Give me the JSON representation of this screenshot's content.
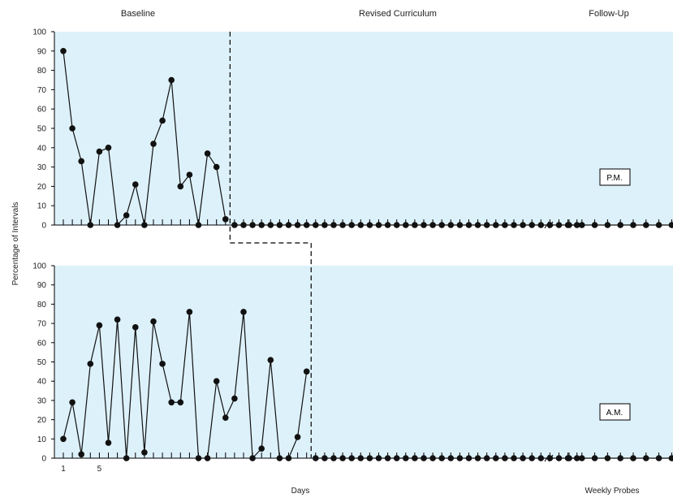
{
  "phases": [
    "Baseline",
    "Revised Curriculum",
    "Follow-Up"
  ],
  "y_axis_title": "Percentage of Intervals",
  "x_axis_title": "Days",
  "x_axis_title_followup": "Weekly Probes",
  "panel_labels": {
    "pm": "P.M.",
    "am": "A.M."
  },
  "colors": {
    "panel_fill": "#ddf1fa",
    "marker": "#111111",
    "line": "#111111"
  },
  "chart_data": [
    {
      "type": "line",
      "name": "P.M.",
      "ylim": [
        0,
        100
      ],
      "yticks": [
        0,
        10,
        20,
        30,
        40,
        50,
        60,
        70,
        80,
        90,
        100
      ],
      "phase_change_after_session": 19,
      "followup_break": true,
      "sessions": [
        1,
        2,
        3,
        4,
        5,
        6,
        7,
        8,
        9,
        10,
        11,
        12,
        13,
        14,
        15,
        16,
        17,
        18,
        19,
        20,
        21,
        22,
        23,
        24,
        25,
        26,
        27,
        28,
        29,
        30,
        31,
        32,
        33,
        34,
        35,
        36,
        37,
        38,
        39,
        40,
        41,
        42,
        43,
        44,
        45,
        46,
        47,
        48,
        49,
        50,
        51,
        52,
        53,
        54,
        55,
        56,
        57,
        58
      ],
      "values": [
        90,
        50,
        33,
        0,
        38,
        40,
        0,
        5,
        21,
        0,
        42,
        54,
        75,
        20,
        26,
        0,
        37,
        30,
        3,
        0,
        0,
        0,
        0,
        0,
        0,
        0,
        0,
        0,
        0,
        0,
        0,
        0,
        0,
        0,
        0,
        0,
        0,
        0,
        0,
        0,
        0,
        0,
        0,
        0,
        0,
        0,
        0,
        0,
        0,
        0,
        0,
        0,
        0,
        0,
        0,
        0,
        0,
        0
      ],
      "followup_values": [
        0,
        0,
        0,
        0,
        0,
        0,
        0,
        0,
        0
      ]
    },
    {
      "type": "line",
      "name": "A.M.",
      "ylim": [
        0,
        100
      ],
      "yticks": [
        0,
        10,
        20,
        30,
        40,
        50,
        60,
        70,
        80,
        90,
        100
      ],
      "phase_change_after_session": 28,
      "followup_break": true,
      "x_tick_labels": [
        {
          "x": 1,
          "label": "1"
        },
        {
          "x": 5,
          "label": "5"
        }
      ],
      "sessions": [
        1,
        2,
        3,
        4,
        5,
        6,
        7,
        8,
        9,
        10,
        11,
        12,
        13,
        14,
        15,
        16,
        17,
        18,
        19,
        20,
        21,
        22,
        23,
        24,
        25,
        26,
        27,
        28,
        29,
        30,
        31,
        32,
        33,
        34,
        35,
        36,
        37,
        38,
        39,
        40,
        41,
        42,
        43,
        44,
        45,
        46,
        47,
        48,
        49,
        50,
        51,
        52,
        53,
        54,
        55,
        56,
        57,
        58
      ],
      "values": [
        10,
        29,
        2,
        49,
        69,
        8,
        72,
        0,
        68,
        3,
        71,
        49,
        29,
        29,
        76,
        0,
        0,
        40,
        21,
        31,
        76,
        0,
        5,
        51,
        0,
        0,
        11,
        45,
        0,
        0,
        0,
        0,
        0,
        0,
        0,
        0,
        0,
        0,
        0,
        0,
        0,
        0,
        0,
        0,
        0,
        0,
        0,
        0,
        0,
        0,
        0,
        0,
        0,
        0,
        0,
        0,
        0,
        0
      ],
      "followup_values": [
        0,
        0,
        0,
        0,
        0,
        0,
        0,
        0,
        0
      ]
    }
  ]
}
